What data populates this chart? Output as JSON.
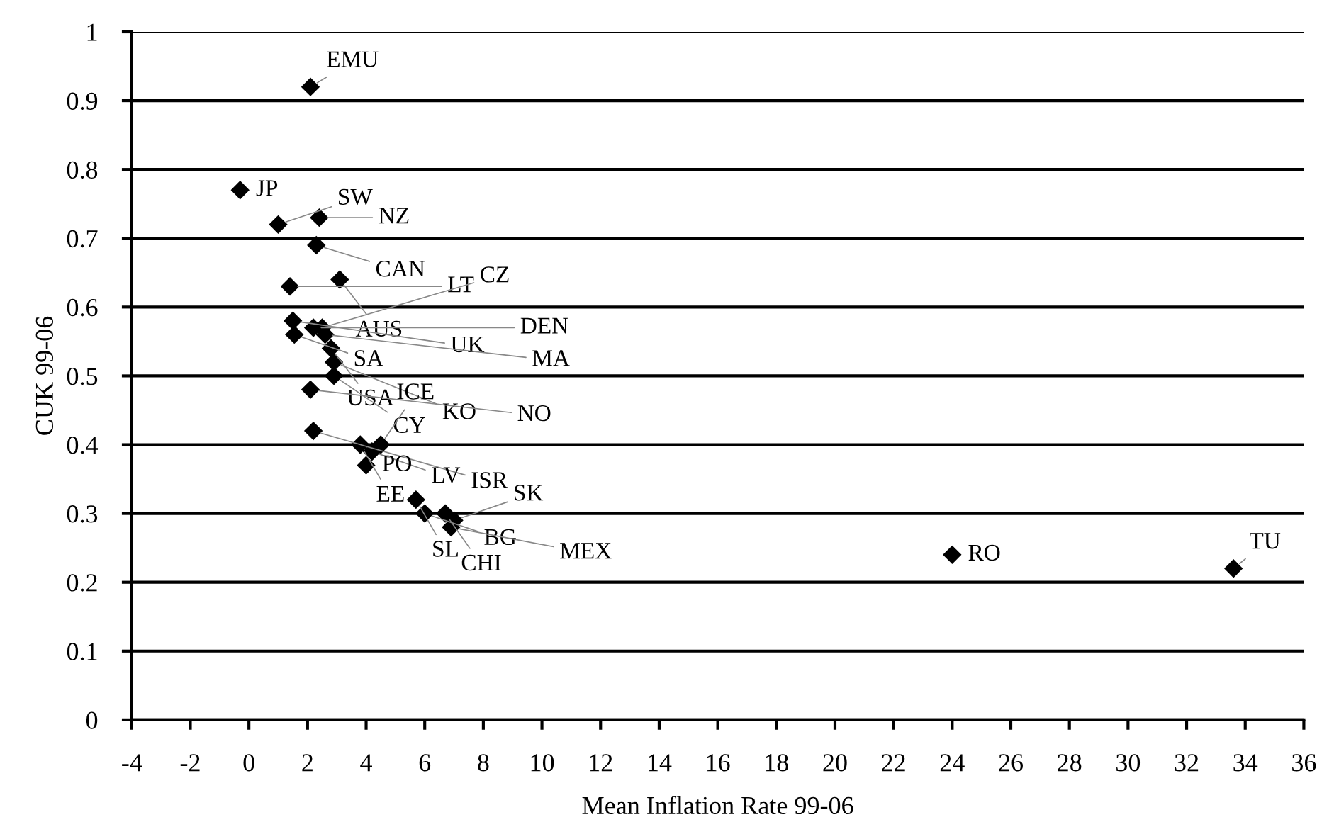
{
  "chart_data": {
    "type": "scatter",
    "xlabel": "Mean Inflation Rate 99-06",
    "ylabel": "CUK 99-06",
    "x": [
      2.1,
      -0.3,
      1.0,
      2.4,
      2.3,
      3.1,
      1.4,
      1.5,
      1.55,
      2.2,
      2.5,
      2.6,
      2.8,
      2.9,
      2.1,
      2.9,
      2.2,
      3.8,
      4.2,
      4.5,
      4.0,
      5.7,
      6.0,
      6.7,
      7.0,
      6.9,
      24.0,
      33.6
    ],
    "series": [
      {
        "color": "#000000",
        "values": [
          0.92,
          0.77,
          0.72,
          0.73,
          0.69,
          0.64,
          0.63,
          0.58,
          0.56,
          0.57,
          0.57,
          0.56,
          0.54,
          0.52,
          0.48,
          0.5,
          0.42,
          0.4,
          0.39,
          0.4,
          0.37,
          0.32,
          0.3,
          0.3,
          0.29,
          0.28,
          0.24,
          0.22
        ]
      }
    ],
    "annotations": [
      {
        "text": "EMU",
        "x": 2.1,
        "y": 0.92
      },
      {
        "text": "JP",
        "x": -0.3,
        "y": 0.77
      },
      {
        "text": "SW",
        "x": 1.0,
        "y": 0.72
      },
      {
        "text": "NZ",
        "x": 2.4,
        "y": 0.73
      },
      {
        "text": "CAN",
        "x": 2.3,
        "y": 0.69
      },
      {
        "text": "AUS",
        "x": 3.1,
        "y": 0.64
      },
      {
        "text": "LT",
        "x": 1.4,
        "y": 0.63
      },
      {
        "text": "UK",
        "x": 1.5,
        "y": 0.58
      },
      {
        "text": "SA",
        "x": 1.55,
        "y": 0.56
      },
      {
        "text": "DEN",
        "x": 2.2,
        "y": 0.57
      },
      {
        "text": "CZ",
        "x": 2.5,
        "y": 0.57
      },
      {
        "text": "MA",
        "x": 2.6,
        "y": 0.56
      },
      {
        "text": "USA",
        "x": 2.8,
        "y": 0.54
      },
      {
        "text": "KO",
        "x": 2.9,
        "y": 0.52
      },
      {
        "text": "NO",
        "x": 2.1,
        "y": 0.48
      },
      {
        "text": "CY",
        "x": 2.9,
        "y": 0.5
      },
      {
        "text": "ISR",
        "x": 2.2,
        "y": 0.42
      },
      {
        "text": "EE",
        "x": 3.8,
        "y": 0.4
      },
      {
        "text": "LV",
        "x": 4.2,
        "y": 0.39
      },
      {
        "text": "ICE",
        "x": 4.5,
        "y": 0.4
      },
      {
        "text": "PO",
        "x": 4.0,
        "y": 0.37
      },
      {
        "text": "SL",
        "x": 5.7,
        "y": 0.32
      },
      {
        "text": "BG",
        "x": 6.0,
        "y": 0.3
      },
      {
        "text": "CHI",
        "x": 6.7,
        "y": 0.3
      },
      {
        "text": "SK",
        "x": 7.0,
        "y": 0.29
      },
      {
        "text": "MEX",
        "x": 6.9,
        "y": 0.28
      },
      {
        "text": "RO",
        "x": 24.0,
        "y": 0.24
      },
      {
        "text": "TU",
        "x": 33.6,
        "y": 0.22
      }
    ],
    "xlim": [
      -4,
      36
    ],
    "xticks": [
      -4,
      -2,
      0,
      2,
      4,
      6,
      8,
      10,
      12,
      14,
      16,
      18,
      20,
      22,
      24,
      26,
      28,
      30,
      32,
      34,
      36
    ],
    "ylim": [
      0,
      1
    ],
    "yticks": [
      0,
      0.1,
      0.2,
      0.3,
      0.4,
      0.5,
      0.6,
      0.7,
      0.8,
      0.9,
      1
    ],
    "grid": "y",
    "marker": "diamond"
  }
}
